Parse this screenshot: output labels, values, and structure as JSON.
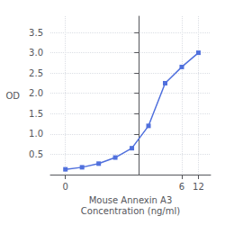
{
  "chart_data": {
    "type": "line",
    "log": "x",
    "xlabel": "Mouse Annexin A3\nConcentration (ng/ml)",
    "ylabel": "OD",
    "x": [
      0.047,
      0.094,
      0.188,
      0.375,
      0.75,
      1.5,
      3.0,
      6.0,
      12.0
    ],
    "values": [
      0.13,
      0.18,
      0.27,
      0.42,
      0.65,
      1.2,
      2.25,
      2.65,
      3.0
    ],
    "xlim": [
      0.025118864315095794,
      19.952623149688797
    ],
    "xticks": [
      {
        "value": 0.047,
        "label": "0"
      },
      6,
      12
    ],
    "ylim": [
      0,
      3.9
    ],
    "yticks": [
      0.5,
      {
        "value": 1.0,
        "label": "1.0"
      },
      1.5,
      {
        "value": 2.0,
        "label": "2.0"
      },
      2.5,
      {
        "value": 3.0,
        "label": "3.0"
      },
      3.5
    ],
    "grid": true,
    "marker": "square"
  }
}
